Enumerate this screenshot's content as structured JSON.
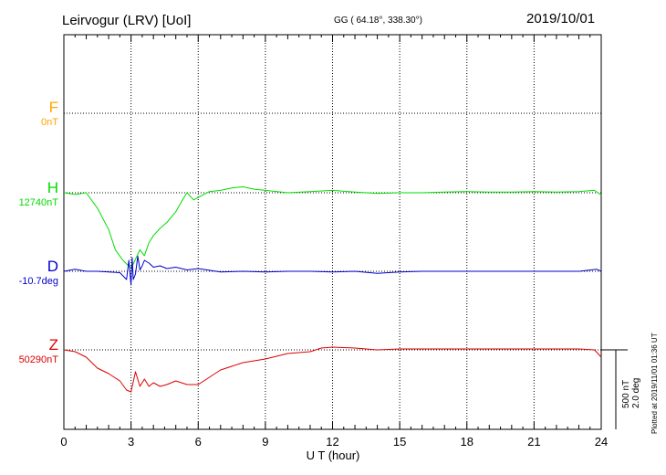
{
  "header": {
    "title": "Leirvogur (LRV)  [UoI]",
    "coords": "GG ( 64.18°, 338.30°)",
    "date": "2019/10/01"
  },
  "plotted_note": "Plotted at 2019/11/01 01:36 UT",
  "scale": {
    "line1": "500 nT",
    "line2": "2.0 deg"
  },
  "channels": [
    {
      "key": "F",
      "name": "F",
      "baseline": "0nT",
      "color": "#ffa500"
    },
    {
      "key": "H",
      "name": "H",
      "baseline": "12740nT",
      "color": "#00dd00"
    },
    {
      "key": "D",
      "name": "D",
      "baseline": "-10.7deg",
      "color": "#0000cc"
    },
    {
      "key": "Z",
      "name": "Z",
      "baseline": "50290nT",
      "color": "#dd0000"
    }
  ],
  "chart_data": {
    "type": "line",
    "title": "Leirvogur (LRV)  [UoI]",
    "xlabel": "U T (hour)",
    "xlim": [
      0,
      24
    ],
    "xticks": [
      0,
      3,
      6,
      9,
      12,
      15,
      18,
      21,
      24
    ],
    "grid": true,
    "y_unit": "offset from baseline (nT; D in deg)",
    "series": [
      {
        "name": "H",
        "x": [
          0,
          0.5,
          1,
          1.5,
          2,
          2.3,
          2.6,
          2.8,
          3.0,
          3.1,
          3.2,
          3.4,
          3.6,
          3.8,
          4.0,
          4.3,
          4.6,
          5.0,
          5.3,
          5.5,
          5.8,
          6.0,
          6.5,
          7.0,
          7.5,
          8.0,
          8.5,
          9.0,
          10,
          11,
          12,
          13,
          14,
          15,
          16,
          17,
          18,
          19,
          20,
          21,
          22,
          23,
          23.7,
          24
        ],
        "y": [
          0,
          -15,
          0,
          -130,
          -310,
          -480,
          -560,
          -600,
          -630,
          -600,
          -560,
          -480,
          -530,
          -420,
          -360,
          -300,
          -250,
          -160,
          -60,
          0,
          -60,
          -40,
          10,
          20,
          40,
          50,
          30,
          20,
          0,
          10,
          20,
          5,
          -5,
          0,
          0,
          5,
          10,
          5,
          5,
          10,
          5,
          10,
          20,
          -20
        ]
      },
      {
        "name": "D",
        "x": [
          0,
          0.5,
          1,
          1.5,
          2,
          2.5,
          2.8,
          2.9,
          3.0,
          3.05,
          3.1,
          3.2,
          3.3,
          3.4,
          3.5,
          3.6,
          3.8,
          4.0,
          4.3,
          4.6,
          5.0,
          5.5,
          6.0,
          7,
          8,
          9,
          10,
          11,
          12,
          13,
          14,
          15,
          16,
          17,
          18,
          19,
          20,
          21,
          22,
          23,
          23.8,
          24
        ],
        "y": [
          0,
          0.15,
          0,
          0,
          -0.05,
          -0.1,
          -0.6,
          0.8,
          -1.0,
          1.0,
          -0.6,
          -0.2,
          1.1,
          0.1,
          0.4,
          0.8,
          0.6,
          0.3,
          0.4,
          0.2,
          0.3,
          0.1,
          0.2,
          -0.05,
          0,
          -0.05,
          0,
          0,
          -0.05,
          0,
          -0.15,
          -0.05,
          0,
          0,
          0,
          0,
          0,
          0,
          0,
          0,
          0.15,
          0
        ]
      },
      {
        "name": "Z",
        "x": [
          0,
          0.5,
          1,
          1.5,
          2,
          2.5,
          2.8,
          3.0,
          3.2,
          3.4,
          3.6,
          3.8,
          4.0,
          4.3,
          4.6,
          5.0,
          5.5,
          6.0,
          6.5,
          7,
          8,
          9,
          10,
          11,
          11.5,
          12,
          13,
          14,
          15,
          16,
          17,
          18,
          19,
          20,
          21,
          22,
          23,
          23.7,
          24
        ],
        "y": [
          0,
          -10,
          -40,
          -100,
          -130,
          -170,
          -220,
          -230,
          -120,
          -200,
          -160,
          -200,
          -180,
          -200,
          -190,
          -170,
          -190,
          -190,
          -150,
          -110,
          -70,
          -50,
          -20,
          -10,
          10,
          15,
          10,
          0,
          5,
          5,
          5,
          5,
          5,
          5,
          5,
          5,
          5,
          0,
          -40
        ]
      }
    ]
  }
}
